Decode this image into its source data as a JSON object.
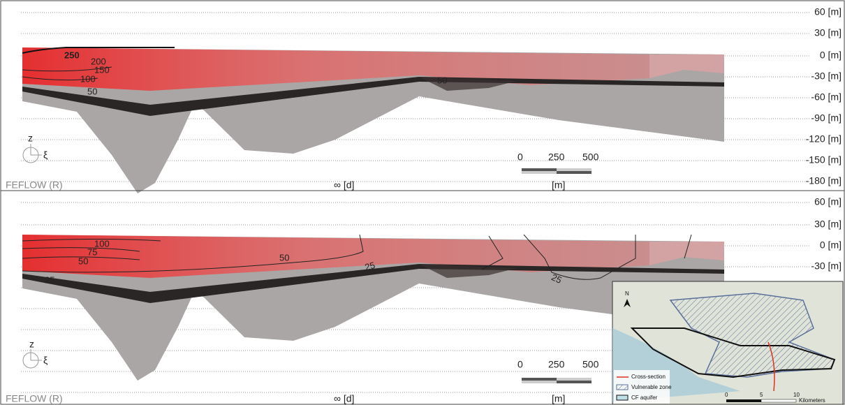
{
  "panels": [
    {
      "y_axis_labels": [
        "60 [m]",
        "30 [m]",
        "0 [m]",
        "-30 [m]",
        "-60 [m]",
        "-90 [m]",
        "-120 [m]",
        "-150 [m]",
        "-180 [m]"
      ],
      "contour_labels": [
        "250",
        "200",
        "150",
        "100",
        "50",
        "50"
      ],
      "axis_symbols": [
        "z",
        "ξ"
      ],
      "scale_bar": [
        "0",
        "250",
        "500"
      ],
      "scale_unit": "[m]",
      "time": "∞ [d]",
      "software": "FEFLOW (R)"
    },
    {
      "y_axis_labels": [
        "60 [m]",
        "30 [m]",
        "0 [m]",
        "-30 [m]"
      ],
      "contour_labels": [
        "100",
        "75",
        "50",
        "25",
        "50",
        "25",
        "25"
      ],
      "axis_symbols": [
        "z",
        "ξ"
      ],
      "scale_bar": [
        "0",
        "250",
        "500"
      ],
      "scale_unit": "[m]",
      "time": "∞ [d]",
      "software": "FEFLOW (R)"
    }
  ],
  "inset_map": {
    "north": "N",
    "legend": [
      "Cross-section",
      "Vulnerable zone",
      "CF aquifer"
    ],
    "scale": [
      "0",
      "5",
      "10",
      "Kilometers"
    ]
  }
}
